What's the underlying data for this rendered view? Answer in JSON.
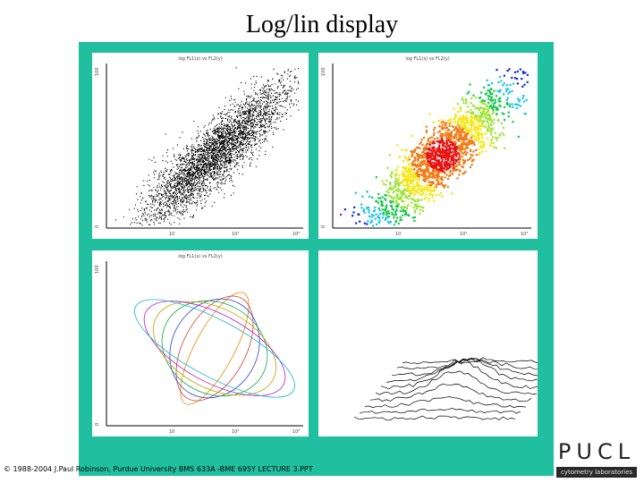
{
  "slide": {
    "title": "Log/lin display",
    "footer": "© 1988-2004 J.Paul Robinson, Purdue University BMS 633A -BME 695Y LECTURE 3.PPT"
  },
  "logo": {
    "letters": "PUCL",
    "subtitle": "cytometry laboratories"
  },
  "colors": {
    "frame": "#1fbf9f",
    "plot_background": "#ffffff",
    "dots": "#000000"
  },
  "panels": [
    {
      "name": "dot-plot",
      "type": "scatter",
      "title": "log FL1(x) vs FL2(y)",
      "y_ticks": [
        "0",
        "100"
      ],
      "x_ticks": [
        "10",
        "10²",
        "10³"
      ]
    },
    {
      "name": "density-plot",
      "type": "heatmap",
      "title": "log FL1(x) vs FL2(y)",
      "y_ticks": [
        "0",
        "100"
      ],
      "x_ticks": [
        "10",
        "10²",
        "10³"
      ],
      "color_scale": [
        "#0c2cd8",
        "#19c2e6",
        "#16c84b",
        "#9fe33a",
        "#f5e716",
        "#f07a14",
        "#e81010"
      ],
      "outlier_color": "#b01dc8"
    },
    {
      "name": "contour-plot",
      "type": "contour",
      "title": "log FL1(x) vs FL2(y)",
      "y_ticks": [
        "0",
        "100"
      ],
      "x_ticks": [
        "10",
        "10²",
        "10³"
      ],
      "contour_colors": [
        "#e68a00",
        "#d23b3b",
        "#2c3fd8",
        "#1aa83c",
        "#c0a100",
        "#b01dc8",
        "#18b3c8"
      ]
    },
    {
      "name": "3d-isometric-plot",
      "type": "3d-histogram",
      "title": "",
      "y_ticks": [],
      "x_ticks": []
    }
  ]
}
